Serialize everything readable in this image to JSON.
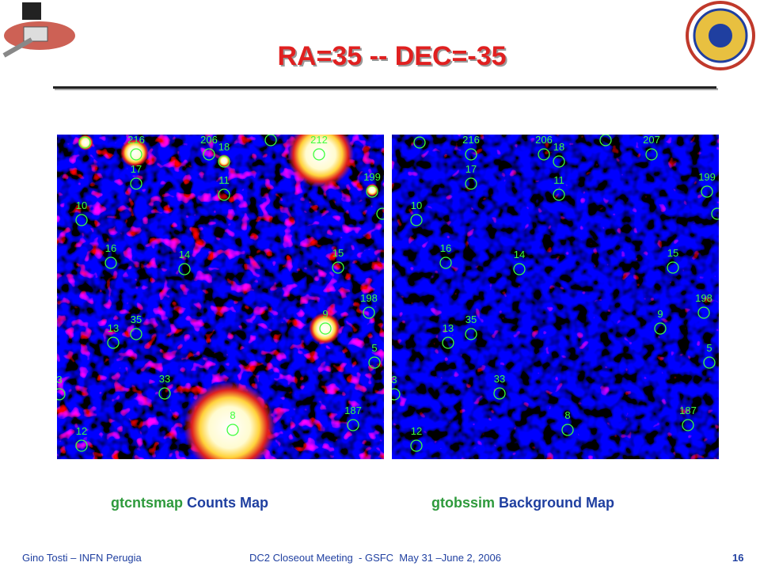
{
  "header": {
    "title": "RA=35 -- DEC=-35"
  },
  "maps": [
    {
      "tool": "gtcntsmap",
      "caption": "Counts Map",
      "sources": [
        "216",
        "206",
        "18",
        "212",
        "17",
        "11",
        "199",
        "10",
        "16",
        "14",
        "15",
        "198",
        "9",
        "35",
        "13",
        "5",
        "33",
        "187",
        "8",
        "12",
        "3"
      ]
    },
    {
      "tool": "gtobssim",
      "caption": "Background Map",
      "sources": [
        "216",
        "206",
        "18",
        "207",
        "17",
        "11",
        "199",
        "10",
        "16",
        "14",
        "15",
        "198",
        "9",
        "35",
        "13",
        "5",
        "33",
        "187",
        "8",
        "12",
        "3"
      ]
    }
  ],
  "footer": {
    "author": "Gino Tosti – INFN Perugia",
    "meeting": "DC2 Closeout Meeting  - GSFC  May 31 –June 2, 2006",
    "page": "16"
  }
}
